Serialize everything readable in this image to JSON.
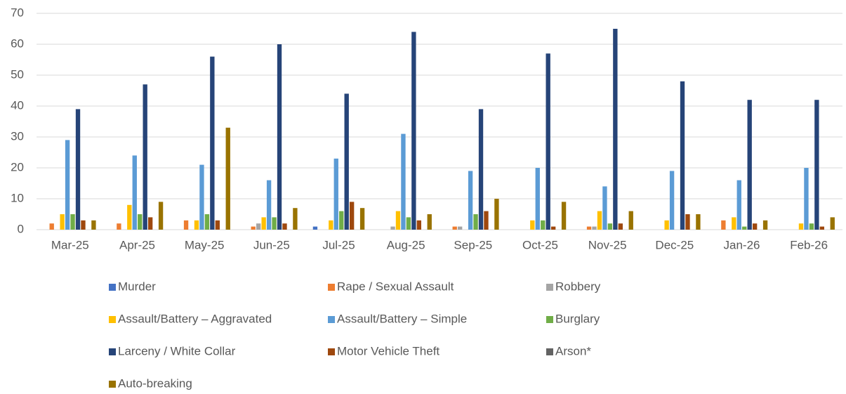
{
  "chart_data": {
    "type": "bar",
    "categories": [
      "Mar-25",
      "Apr-25",
      "May-25",
      "Jun-25",
      "Jul-25",
      "Aug-25",
      "Sep-25",
      "Oct-25",
      "Nov-25",
      "Dec-25",
      "Jan-26",
      "Feb-26"
    ],
    "series": [
      {
        "name": "Murder",
        "color": "#4472c4",
        "values": [
          0,
          0,
          0,
          0,
          1,
          0,
          0,
          0,
          0,
          0,
          0,
          0
        ]
      },
      {
        "name": "Rape / Sexual Assault",
        "color": "#ed7d31",
        "values": [
          2,
          2,
          3,
          1,
          0,
          0,
          1,
          0,
          1,
          0,
          3,
          0
        ]
      },
      {
        "name": "Robbery",
        "color": "#a5a5a5",
        "values": [
          0,
          0,
          0,
          2,
          0,
          1,
          1,
          0,
          1,
          0,
          0,
          0
        ]
      },
      {
        "name": "Assault/Battery – Aggravated",
        "color": "#ffc000",
        "values": [
          5,
          8,
          3,
          4,
          3,
          6,
          0,
          3,
          6,
          3,
          4,
          2
        ]
      },
      {
        "name": "Assault/Battery – Simple",
        "color": "#5b9bd5",
        "values": [
          29,
          24,
          21,
          16,
          23,
          31,
          19,
          20,
          14,
          19,
          16,
          20
        ]
      },
      {
        "name": "Burglary",
        "color": "#70ad47",
        "values": [
          5,
          5,
          5,
          4,
          6,
          4,
          5,
          3,
          2,
          0,
          1,
          2
        ]
      },
      {
        "name": "Larceny / White Collar",
        "color": "#264478",
        "values": [
          39,
          47,
          56,
          60,
          44,
          64,
          39,
          57,
          65,
          48,
          42,
          42
        ]
      },
      {
        "name": "Motor Vehicle Theft",
        "color": "#9e480e",
        "values": [
          3,
          4,
          3,
          2,
          9,
          3,
          6,
          1,
          2,
          5,
          2,
          1
        ]
      },
      {
        "name": "Arson*",
        "color": "#636363",
        "values": [
          0,
          0,
          0,
          0,
          0,
          0,
          0,
          0,
          0,
          0,
          0,
          0
        ]
      },
      {
        "name": "Auto-breaking",
        "color": "#997300",
        "values": [
          3,
          9,
          33,
          7,
          7,
          5,
          10,
          9,
          6,
          5,
          3,
          4
        ]
      }
    ],
    "ylim": [
      0,
      70
    ],
    "yticks": [
      0,
      10,
      20,
      30,
      40,
      50,
      60,
      70
    ],
    "grid": true,
    "legend": "bottom"
  }
}
